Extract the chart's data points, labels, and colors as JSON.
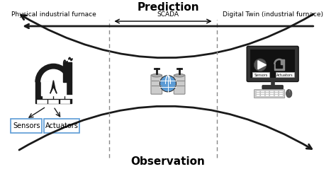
{
  "title_prediction": "Prediction",
  "title_observation": "Observation",
  "label_physical": "Physical industrial furnace",
  "label_scada": "SCADA",
  "label_digital": "Digital Twin (industrial furnace)",
  "label_sensors": "Sensors",
  "label_actuators": "Actuators",
  "bg_color": "#ffffff",
  "text_color": "#000000",
  "icon_color": "#1a1a1a",
  "box_color": "#ffffff",
  "box_edge": "#5b9bd5",
  "arrow_color": "#1a1a1a",
  "divider_color": "#888888",
  "screen_bg": "#222222",
  "screen_inner": "#1a1a1a",
  "figsize": [
    4.74,
    2.39
  ],
  "dpi": 100
}
